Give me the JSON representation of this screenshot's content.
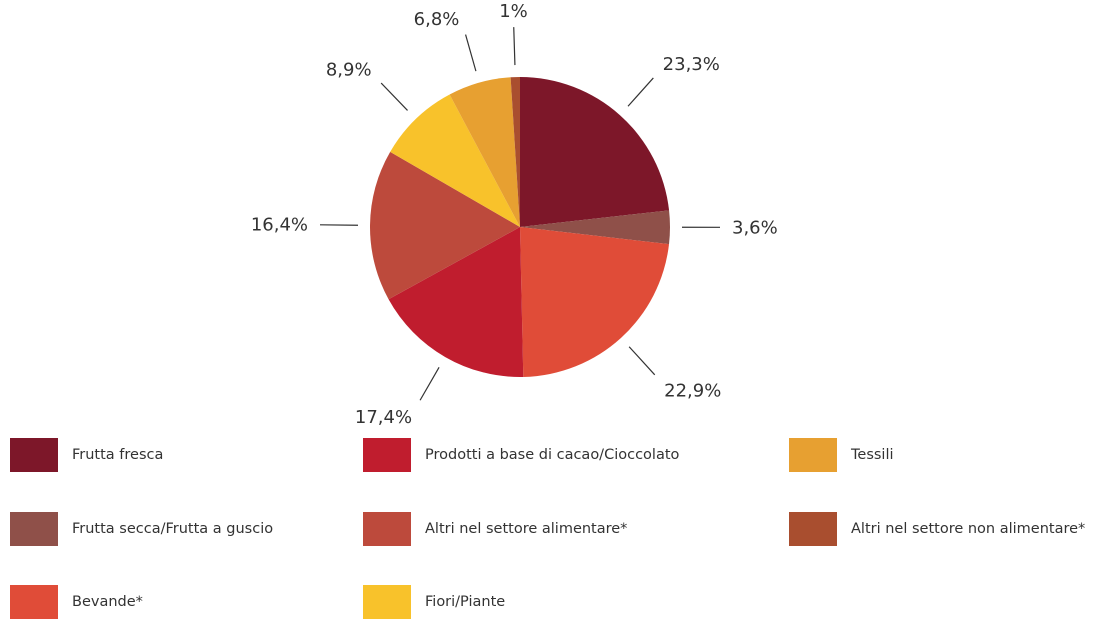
{
  "chart_data": {
    "type": "pie",
    "title": "",
    "start_angle_deg": 0,
    "direction": "clockwise",
    "slices": [
      {
        "label": "Frutta fresca",
        "value": 23.3,
        "display": "23,3%",
        "color": "#7d1729"
      },
      {
        "label": "Frutta secca/Frutta a guscio",
        "value": 3.6,
        "display": "3,6%",
        "color": "#8f5049"
      },
      {
        "label": "Bevande*",
        "value": 22.9,
        "display": "22,9%",
        "color": "#e04c38"
      },
      {
        "label": "Prodotti a base di cacao/Cioccolato",
        "value": 17.4,
        "display": "17,4%",
        "color": "#c01d2e"
      },
      {
        "label": "Altri nel settore alimentare*",
        "value": 16.4,
        "display": "16,4%",
        "color": "#bd4a3c"
      },
      {
        "label": "Fiori/Piante",
        "value": 8.9,
        "display": "8,9%",
        "color": "#f8c22b"
      },
      {
        "label": "Tessili",
        "value": 6.8,
        "display": "6,8%",
        "color": "#e7a031"
      },
      {
        "label": "Altri nel settore non alimentare*",
        "value": 1.0,
        "display": "1%",
        "color": "#a94e2f"
      }
    ],
    "legend": {
      "placement": "bottom",
      "columns": 3,
      "items": [
        [
          "Frutta fresca",
          "Frutta secca/Frutta a guscio",
          "Bevande*"
        ],
        [
          "Prodotti a base di cacao/Cioccolato",
          "Altri nel settore alimentare*",
          "Fiori/Piante"
        ],
        [
          "Tessili",
          "Altri nel settore non alimentare*"
        ]
      ]
    }
  }
}
